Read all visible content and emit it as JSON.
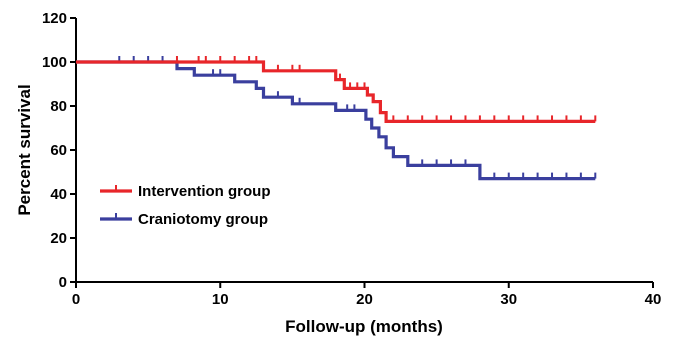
{
  "chart_data": {
    "type": "line",
    "title": "",
    "xlabel": "Follow-up (months)",
    "ylabel": "Percent survival",
    "xlim": [
      0,
      40
    ],
    "ylim": [
      0,
      120
    ],
    "xticks": [
      0,
      10,
      20,
      30,
      40
    ],
    "yticks": [
      0,
      20,
      40,
      60,
      80,
      100,
      120
    ],
    "grid": false,
    "legend_position": "lower-left",
    "step": true,
    "series": [
      {
        "name": "Intervention group",
        "color": "#e8262a",
        "steps": [
          [
            0,
            100
          ],
          [
            13,
            100
          ],
          [
            13,
            96
          ],
          [
            18,
            96
          ],
          [
            18,
            92
          ],
          [
            18.6,
            92
          ],
          [
            18.6,
            88
          ],
          [
            20.2,
            88
          ],
          [
            20.2,
            85
          ],
          [
            20.6,
            85
          ],
          [
            20.6,
            82
          ],
          [
            21.1,
            82
          ],
          [
            21.1,
            77
          ],
          [
            21.5,
            77
          ],
          [
            21.5,
            73
          ],
          [
            36,
            73
          ]
        ],
        "censored": [
          [
            7,
            100
          ],
          [
            8.5,
            100
          ],
          [
            9,
            100
          ],
          [
            10,
            100
          ],
          [
            11,
            100
          ],
          [
            12,
            100
          ],
          [
            12.5,
            100
          ],
          [
            14,
            96
          ],
          [
            15,
            96
          ],
          [
            15.5,
            96
          ],
          [
            18.3,
            92
          ],
          [
            19,
            88
          ],
          [
            19.5,
            88
          ],
          [
            20,
            88
          ],
          [
            22,
            73
          ],
          [
            23,
            73
          ],
          [
            24,
            73
          ],
          [
            25,
            73
          ],
          [
            26,
            73
          ],
          [
            27,
            73
          ],
          [
            28,
            73
          ],
          [
            29,
            73
          ],
          [
            30,
            73
          ],
          [
            31,
            73
          ],
          [
            32,
            73
          ],
          [
            33,
            73
          ],
          [
            34,
            73
          ],
          [
            35,
            73
          ],
          [
            36,
            73
          ]
        ]
      },
      {
        "name": "Craniotomy group",
        "color": "#3a3f9e",
        "steps": [
          [
            0,
            100
          ],
          [
            7,
            100
          ],
          [
            7,
            97
          ],
          [
            8.2,
            97
          ],
          [
            8.2,
            94
          ],
          [
            11,
            94
          ],
          [
            11,
            91
          ],
          [
            12.5,
            91
          ],
          [
            12.5,
            88
          ],
          [
            13,
            88
          ],
          [
            13,
            84
          ],
          [
            15,
            84
          ],
          [
            15,
            81
          ],
          [
            18,
            81
          ],
          [
            18,
            78
          ],
          [
            20.1,
            78
          ],
          [
            20.1,
            74
          ],
          [
            20.5,
            74
          ],
          [
            20.5,
            70
          ],
          [
            21,
            70
          ],
          [
            21,
            66
          ],
          [
            21.5,
            66
          ],
          [
            21.5,
            61
          ],
          [
            22,
            61
          ],
          [
            22,
            57
          ],
          [
            23,
            57
          ],
          [
            23,
            53
          ],
          [
            28,
            53
          ],
          [
            28,
            47
          ],
          [
            36,
            47
          ]
        ],
        "censored": [
          [
            3,
            100
          ],
          [
            4,
            100
          ],
          [
            5,
            100
          ],
          [
            6,
            100
          ],
          [
            9.5,
            94
          ],
          [
            10,
            94
          ],
          [
            14,
            84
          ],
          [
            15.5,
            81
          ],
          [
            18.8,
            78
          ],
          [
            19.3,
            78
          ],
          [
            24,
            53
          ],
          [
            25,
            53
          ],
          [
            26,
            53
          ],
          [
            27,
            53
          ],
          [
            29,
            47
          ],
          [
            30,
            47
          ],
          [
            31,
            47
          ],
          [
            32,
            47
          ],
          [
            33,
            47
          ],
          [
            34,
            47
          ],
          [
            35,
            47
          ],
          [
            36,
            47
          ]
        ]
      }
    ]
  }
}
